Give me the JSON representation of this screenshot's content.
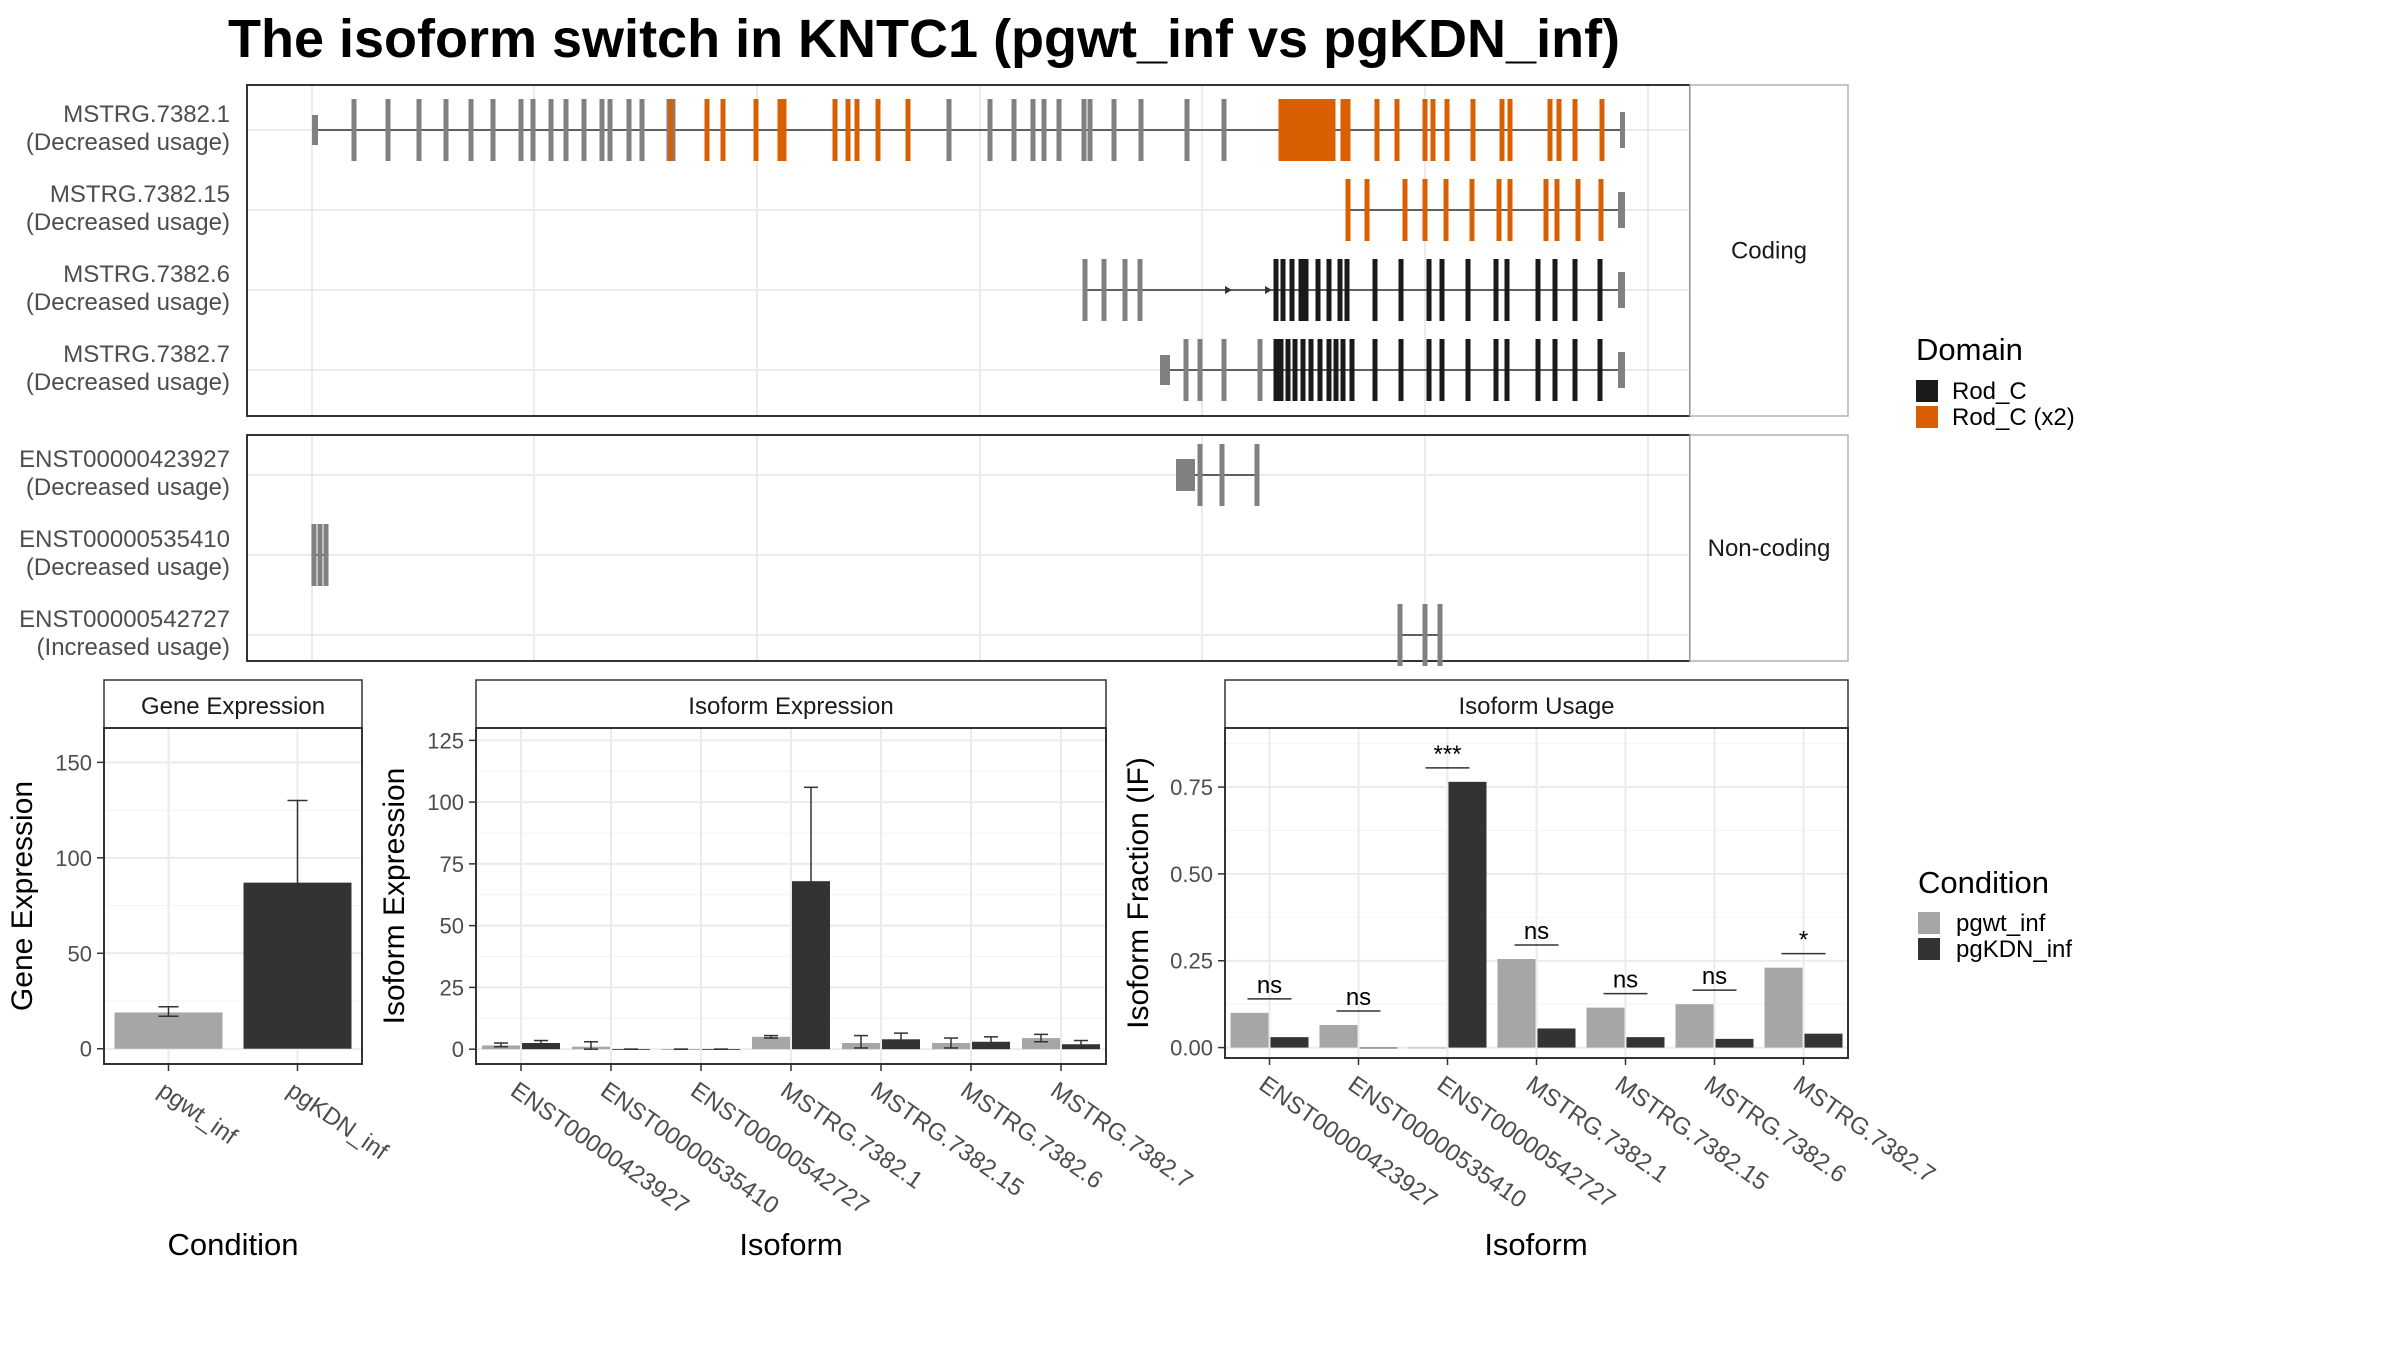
{
  "title": "The isoform switch in KNTC1 (pgwt_inf vs pgKDN_inf)",
  "colors": {
    "domain_rod_c": "#1a1a1a",
    "domain_rod_c_x2": "#d95f02",
    "exon": "#808080",
    "pgwt_inf": "#a6a6a6",
    "pgKDN_inf": "#333333"
  },
  "structure_panel": {
    "facets": [
      {
        "label": "Coding",
        "transcripts": [
          {
            "id": "MSTRG.7382.1",
            "note": "(Decreased usage)"
          },
          {
            "id": "MSTRG.7382.15",
            "note": "(Decreased usage)"
          },
          {
            "id": "MSTRG.7382.6",
            "note": "(Decreased usage)"
          },
          {
            "id": "MSTRG.7382.7",
            "note": "(Decreased usage)"
          }
        ]
      },
      {
        "label": "Non-coding",
        "transcripts": [
          {
            "id": "ENST00000423927",
            "note": "(Decreased usage)"
          },
          {
            "id": "ENST00000535410",
            "note": "(Decreased usage)"
          },
          {
            "id": "ENST00000542727",
            "note": "(Increased usage)"
          }
        ]
      }
    ]
  },
  "legends": {
    "domain": {
      "title": "Domain",
      "items": [
        {
          "label": "Rod_C",
          "color": "#1a1a1a"
        },
        {
          "label": "Rod_C (x2)",
          "color": "#d95f02"
        }
      ]
    },
    "condition": {
      "title": "Condition",
      "items": [
        {
          "label": "pgwt_inf",
          "color": "#a6a6a6"
        },
        {
          "label": "pgKDN_inf",
          "color": "#333333"
        }
      ]
    }
  },
  "chart_data": [
    {
      "type": "bar",
      "title": "Gene Expression",
      "xlabel": "Condition",
      "ylabel": "Gene Expression",
      "categories": [
        "pgwt_inf",
        "pgKDN_inf"
      ],
      "values": [
        19,
        87
      ],
      "error_low": [
        17,
        45
      ],
      "error_high": [
        22,
        130
      ],
      "ylim": [
        -8,
        168
      ],
      "yticks": [
        0,
        50,
        100,
        150
      ],
      "grid": true
    },
    {
      "type": "bar",
      "title": "Isoform Expression",
      "xlabel": "Isoform",
      "ylabel": "Isoform Expression",
      "categories": [
        "ENST00000423927",
        "ENST00000535410",
        "ENST00000542727",
        "MSTRG.7382.1",
        "MSTRG.7382.15",
        "MSTRG.7382.6",
        "MSTRG.7382.7"
      ],
      "series": [
        {
          "name": "pgwt_inf",
          "values": [
            1.5,
            1,
            0,
            5,
            2.5,
            2.5,
            4.5
          ],
          "error_low": [
            1,
            0,
            0,
            4.5,
            0.5,
            0.5,
            3
          ],
          "error_high": [
            2.5,
            3,
            0,
            5.5,
            5.5,
            4.5,
            6
          ]
        },
        {
          "name": "pgKDN_inf",
          "values": [
            2.5,
            0,
            0,
            68,
            4,
            3,
            2
          ],
          "error_low": [
            1.5,
            0,
            0,
            30,
            1.5,
            1.5,
            0.5
          ],
          "error_high": [
            3.5,
            0,
            0,
            106,
            6.5,
            5,
            3.5
          ]
        }
      ],
      "ylim": [
        -6,
        130
      ],
      "yticks": [
        0,
        25,
        50,
        75,
        100,
        125
      ],
      "grid": true
    },
    {
      "type": "bar",
      "title": "Isoform Usage",
      "xlabel": "Isoform",
      "ylabel": "Isoform Fraction (IF)",
      "categories": [
        "ENST00000423927",
        "ENST00000535410",
        "ENST00000542727",
        "MSTRG.7382.1",
        "MSTRG.7382.15",
        "MSTRG.7382.6",
        "MSTRG.7382.7"
      ],
      "series": [
        {
          "name": "pgwt_inf",
          "values": [
            0.1,
            0.065,
            0.0,
            0.255,
            0.115,
            0.125,
            0.23
          ]
        },
        {
          "name": "pgKDN_inf",
          "values": [
            0.03,
            0.0,
            0.765,
            0.055,
            0.03,
            0.025,
            0.04
          ]
        }
      ],
      "significance": [
        "ns",
        "ns",
        "***",
        "ns",
        "ns",
        "ns",
        "*"
      ],
      "ylim": [
        -0.03,
        0.92
      ],
      "yticks": [
        0.0,
        0.25,
        0.5,
        0.75
      ],
      "ytick_labels": [
        "0.00",
        "0.25",
        "0.50",
        "0.75"
      ],
      "grid": true
    }
  ]
}
